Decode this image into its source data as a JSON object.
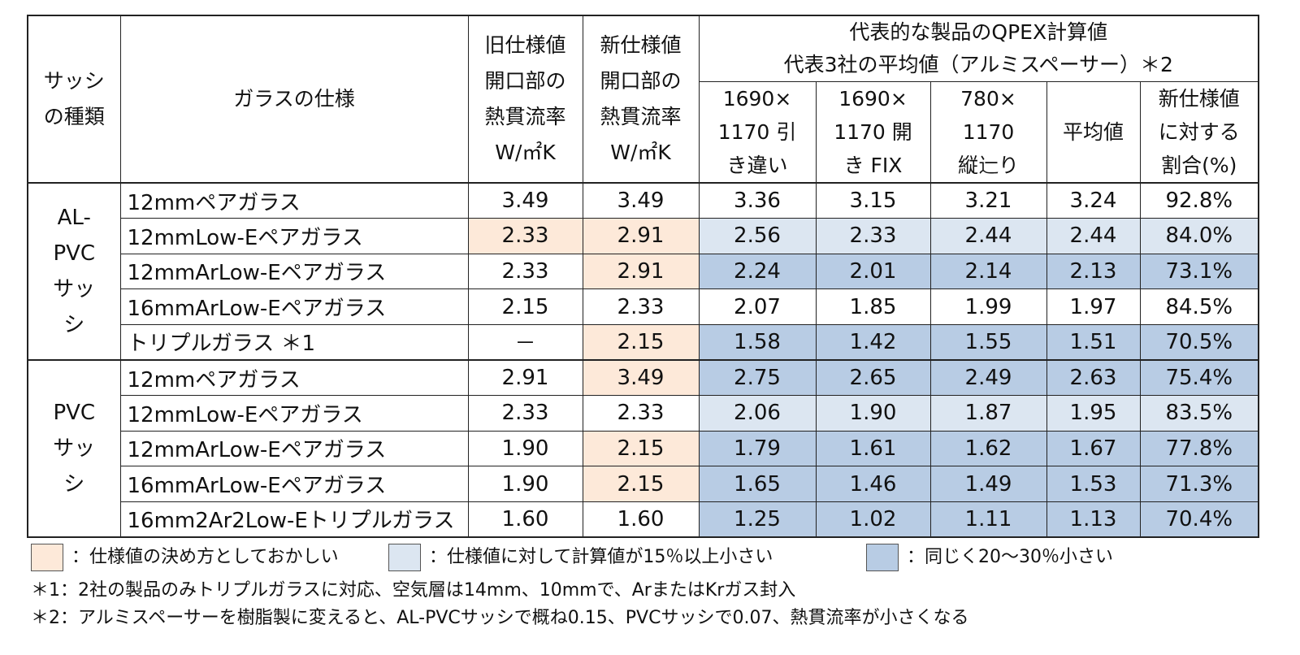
{
  "header": {
    "sash_type": "サッシの種類",
    "glass_spec": "ガラスの仕様",
    "old_value": "旧仕様値 開口部の 熱貫流率 W/㎡K",
    "new_value": "新仕様値 開口部の 熱貫流率 W/㎡K",
    "group_title_line1": "代表的な製品のQPEX計算値",
    "group_title_line2": "代表3社の平均値（アルミスペーサー）＊2",
    "sub_1": "1690× 1170 引き違い",
    "sub_2": "1690× 1170 開き FIX",
    "sub_3": "780× 1170 縦辷り",
    "sub_avg": "平均値",
    "sub_ratio": "新仕様値 に対する 割合(%)"
  },
  "groups": [
    {
      "sash": "AL- PVC サッシ",
      "rows": [
        {
          "spec": "12mmペアガラス",
          "old": "3.49",
          "new": "3.49",
          "v1": "3.36",
          "v2": "3.15",
          "v3": "3.21",
          "avg": "3.24",
          "ratio": "92.8%"
        },
        {
          "spec": "12mmLow-Eペアガラス",
          "old": "2.33",
          "new": "2.91",
          "v1": "2.56",
          "v2": "2.33",
          "v3": "2.44",
          "avg": "2.44",
          "ratio": "84.0%"
        },
        {
          "spec": "12mmArLow-Eペアガラス",
          "old": "2.33",
          "new": "2.91",
          "v1": "2.24",
          "v2": "2.01",
          "v3": "2.14",
          "avg": "2.13",
          "ratio": "73.1%"
        },
        {
          "spec": "16mmArLow-Eペアガラス",
          "old": "2.15",
          "new": "2.33",
          "v1": "2.07",
          "v2": "1.85",
          "v3": "1.99",
          "avg": "1.97",
          "ratio": "84.5%"
        },
        {
          "spec": "トリプルガラス ＊1",
          "old": "－",
          "new": "2.15",
          "v1": "1.58",
          "v2": "1.42",
          "v3": "1.55",
          "avg": "1.51",
          "ratio": "70.5%"
        }
      ]
    },
    {
      "sash": "PVC サッシ",
      "rows": [
        {
          "spec": "12mmペアガラス",
          "old": "2.91",
          "new": "3.49",
          "v1": "2.75",
          "v2": "2.65",
          "v3": "2.49",
          "avg": "2.63",
          "ratio": "75.4%"
        },
        {
          "spec": "12mmLow-Eペアガラス",
          "old": "2.33",
          "new": "2.33",
          "v1": "2.06",
          "v2": "1.90",
          "v3": "1.87",
          "avg": "1.95",
          "ratio": "83.5%"
        },
        {
          "spec": "12mmArLow-Eペアガラス",
          "old": "1.90",
          "new": "2.15",
          "v1": "1.79",
          "v2": "1.61",
          "v3": "1.62",
          "avg": "1.67",
          "ratio": "77.8%"
        },
        {
          "spec": "16mmArLow-Eペアガラス",
          "old": "1.90",
          "new": "2.15",
          "v1": "1.65",
          "v2": "1.46",
          "v3": "1.49",
          "avg": "1.53",
          "ratio": "71.3%"
        },
        {
          "spec": "16mm2Ar2Low-Eトリプルガラス",
          "old": "1.60",
          "new": "1.60",
          "v1": "1.25",
          "v2": "1.02",
          "v3": "1.11",
          "avg": "1.13",
          "ratio": "70.4%"
        }
      ]
    }
  ],
  "legend": [
    {
      "color": "#fde9d9",
      "label": "：仕様値の決め方としておかしい"
    },
    {
      "color": "#dce6f1",
      "label": "：仕様値に対して計算値が15％以上小さい"
    },
    {
      "color": "#b8cce4",
      "label": "：同じく20～30％小さい"
    }
  ],
  "notes": [
    "＊1：2社の製品のみトリプルガラスに対応、空気層は14mm、10mmで、ArまたはKrガス封入",
    "＊2：アルミスペーサーを樹脂製に変えると、AL-PVCサッシで概ね0.15、PVCサッシで0.07、熱貫流率が小さくなる"
  ]
}
